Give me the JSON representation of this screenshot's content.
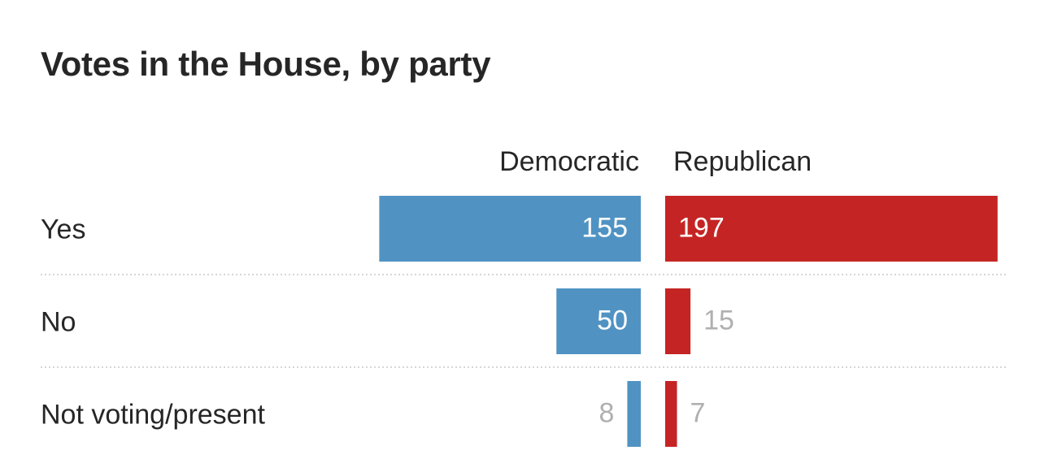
{
  "chart_data": {
    "type": "bar",
    "title": "Votes in the House, by party",
    "categories": [
      "Yes",
      "No",
      "Not voting/present"
    ],
    "series": [
      {
        "name": "Democratic",
        "values": [
          155,
          50,
          8
        ],
        "color": "#5093c3"
      },
      {
        "name": "Republican",
        "values": [
          197,
          15,
          7
        ],
        "color": "#c42524"
      }
    ],
    "grid": false,
    "legend": "top",
    "label_colors": {
      "inside": "#ffffff",
      "outside": "#b0b0b0"
    }
  }
}
